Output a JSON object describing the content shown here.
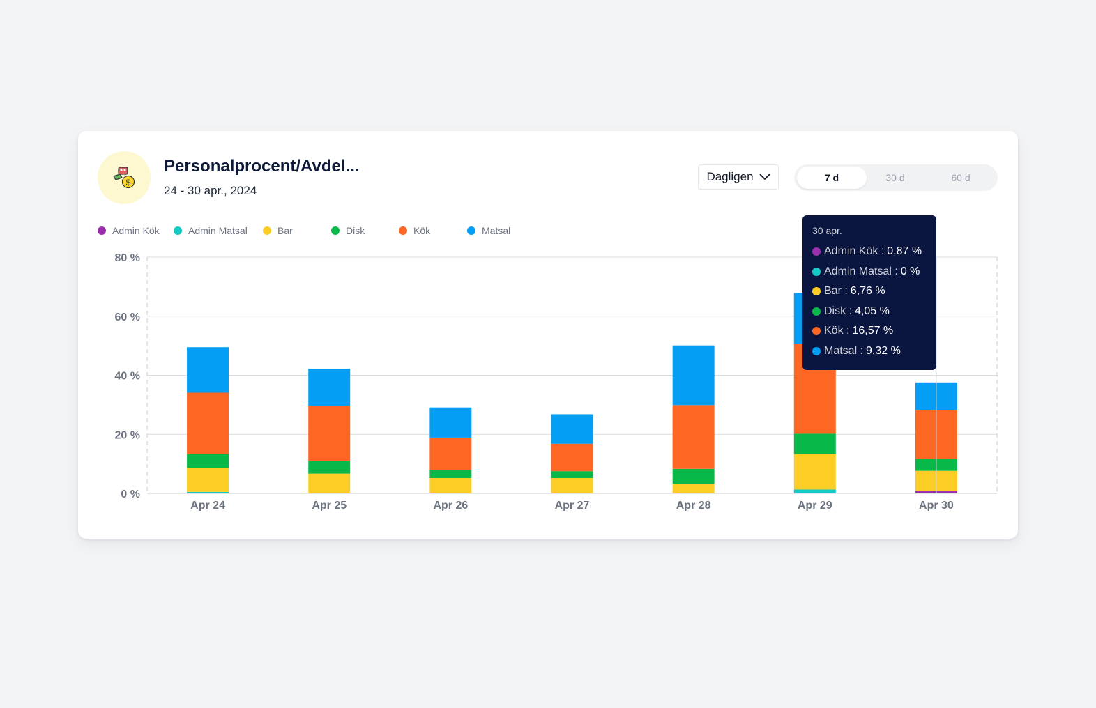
{
  "widget": {
    "title": "Personalprocent/Avdel...",
    "date_range": "24 - 30 apr., 2024",
    "icon": "money-staff-icon",
    "interval_label": "Dagligen",
    "ranges": [
      "7 d",
      "30 d",
      "60 d"
    ],
    "active_range": "7 d"
  },
  "tooltip": {
    "title": "30 apr.",
    "rows": [
      {
        "label": "Admin Kök :",
        "value": "0,87 %",
        "color": "#9c2fae"
      },
      {
        "label": "Admin Matsal :",
        "value": "0 %",
        "color": "#14c9c4"
      },
      {
        "label": "Bar :",
        "value": "6,76 %",
        "color": "#fbcd25"
      },
      {
        "label": "Disk :",
        "value": "4,05 %",
        "color": "#08b949"
      },
      {
        "label": "Kök :",
        "value": "16,57 %",
        "color": "#fe6624"
      },
      {
        "label": "Matsal :",
        "value": "9,32 %",
        "color": "#049ef4"
      }
    ]
  },
  "chart_data": {
    "type": "bar",
    "stacked": true,
    "categories": [
      "Apr 24",
      "Apr 25",
      "Apr 26",
      "Apr 27",
      "Apr 28",
      "Apr 29",
      "Apr 30"
    ],
    "y_ticks": [
      "0 %",
      "20 %",
      "40 %",
      "60 %",
      "80 %"
    ],
    "ylim": [
      0,
      80
    ],
    "grid": true,
    "legend_position": "top-left",
    "series": [
      {
        "name": "Admin Kök",
        "color": "#9c2fae",
        "values": [
          0,
          0,
          0,
          0,
          0,
          0,
          0.87
        ]
      },
      {
        "name": "Admin Matsal",
        "color": "#14c9c4",
        "values": [
          0.5,
          0,
          0,
          0,
          0,
          1.3,
          0
        ]
      },
      {
        "name": "Bar",
        "color": "#fbcd25",
        "values": [
          8.1,
          6.7,
          5.2,
          5.2,
          3.3,
          12.0,
          6.76
        ]
      },
      {
        "name": "Disk",
        "color": "#08b949",
        "values": [
          4.7,
          4.3,
          2.8,
          2.3,
          5.0,
          6.9,
          4.05
        ]
      },
      {
        "name": "Kök",
        "color": "#fe6624",
        "values": [
          20.8,
          18.7,
          10.9,
          9.3,
          21.6,
          30.4,
          16.57
        ]
      },
      {
        "name": "Matsal",
        "color": "#049ef4",
        "values": [
          15.4,
          12.5,
          10.2,
          10.0,
          20.2,
          17.3,
          9.32
        ]
      }
    ]
  }
}
